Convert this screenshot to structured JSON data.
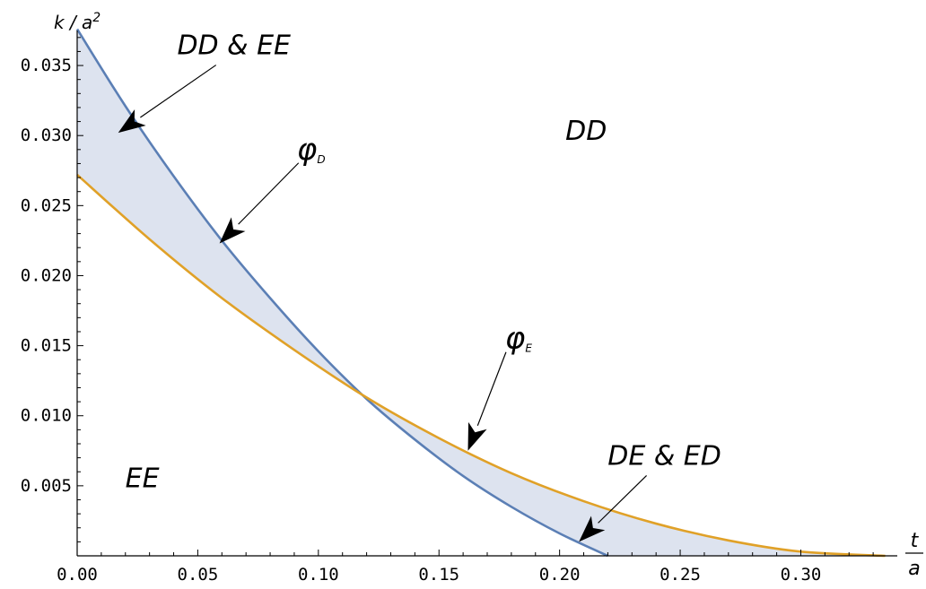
{
  "chart_data": {
    "type": "area",
    "xlabel": {
      "num": "t",
      "den": "a"
    },
    "ylabel": "k / a²",
    "xlim": [
      0,
      0.34
    ],
    "ylim": [
      0,
      0.0375
    ],
    "x_ticks": [
      0.0,
      0.05,
      0.1,
      0.15,
      0.2,
      0.25,
      0.3
    ],
    "x_tick_labels": [
      "0.00",
      "0.05",
      "0.10",
      "0.15",
      "0.20",
      "0.25",
      "0.30"
    ],
    "y_ticks": [
      0.005,
      0.01,
      0.015,
      0.02,
      0.025,
      0.03,
      0.035
    ],
    "y_tick_labels": [
      "0.005",
      "0.010",
      "0.015",
      "0.020",
      "0.025",
      "0.030",
      "0.035"
    ],
    "series": [
      {
        "name": "φ_D",
        "color": "#5b7fb5",
        "x": [
          0.0,
          0.02,
          0.04,
          0.06,
          0.08,
          0.1,
          0.12,
          0.14,
          0.16,
          0.18,
          0.2,
          0.22
        ],
        "y": [
          0.0376,
          0.0321,
          0.0271,
          0.0225,
          0.0184,
          0.0146,
          0.0112,
          0.0083,
          0.0057,
          0.0035,
          0.0016,
          0.0
        ]
      },
      {
        "name": "φ_E",
        "color": "#e0a128",
        "x": [
          0.0,
          0.03,
          0.06,
          0.09,
          0.12,
          0.15,
          0.18,
          0.21,
          0.24,
          0.27,
          0.3,
          0.335
        ],
        "y": [
          0.0272,
          0.0226,
          0.0184,
          0.0147,
          0.0113,
          0.0084,
          0.0059,
          0.0039,
          0.0023,
          0.0011,
          0.0003,
          0.0
        ]
      }
    ],
    "fill_between": {
      "color": "#dde3ef",
      "series": [
        "φ_D",
        "φ_E"
      ]
    },
    "annotations": [
      {
        "id": "dd-ee",
        "text": "DD & EE",
        "x": 0.065,
        "y": 0.0358,
        "arrow_to": [
          0.017,
          0.0302
        ]
      },
      {
        "id": "phi-d",
        "text": "φ",
        "sub": "D",
        "x": 0.097,
        "y": 0.0283,
        "arrow_to": [
          0.059,
          0.0223
        ]
      },
      {
        "id": "phi-e",
        "text": "φ",
        "sub": "E",
        "x": 0.183,
        "y": 0.0148,
        "arrow_to": [
          0.162,
          0.0075
        ]
      },
      {
        "id": "de-ed",
        "text": "DE & ED",
        "x": 0.2435,
        "y": 0.0065,
        "arrow_to": [
          0.208,
          0.001
        ]
      }
    ],
    "region_labels": [
      {
        "id": "dd",
        "text": "DD",
        "x": 0.211,
        "y": 0.0297
      },
      {
        "id": "ee",
        "text": "EE",
        "x": 0.027,
        "y": 0.0049
      }
    ]
  }
}
